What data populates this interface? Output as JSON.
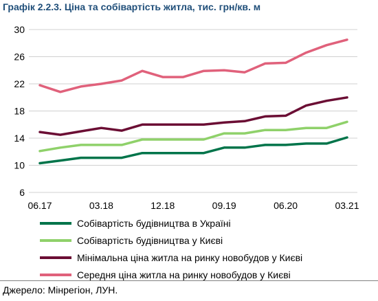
{
  "header": {
    "label": "Графік 2.2.3.",
    "title": "Ціна та собівартість житла, тис. грн/кв. м"
  },
  "source": "Джерело: Мінрегіон, ЛУН.",
  "chart_data": {
    "type": "line",
    "title": "Ціна та собівартість житла, тис. грн/кв. м",
    "ylim": [
      6,
      30
    ],
    "yticks": [
      6,
      10,
      14,
      18,
      22,
      26,
      30
    ],
    "xlim": [
      0,
      15
    ],
    "xtick_labels": [
      {
        "x": 0,
        "label": "06.17"
      },
      {
        "x": 3,
        "label": "03.18"
      },
      {
        "x": 6,
        "label": "12.18"
      },
      {
        "x": 9,
        "label": "09.19"
      },
      {
        "x": 12,
        "label": "06.20"
      },
      {
        "x": 15,
        "label": "03.21"
      }
    ],
    "grid": true,
    "legend_position": "bottom",
    "x": [
      0,
      1,
      2,
      3,
      4,
      5,
      6,
      7,
      8,
      9,
      10,
      11,
      12,
      13,
      14,
      15
    ],
    "series": [
      {
        "name": "Собівартість будівництва в Україні",
        "color": "#00744a",
        "values": [
          10.3,
          10.7,
          11.1,
          11.1,
          11.1,
          11.8,
          11.8,
          11.8,
          11.8,
          12.6,
          12.6,
          13.0,
          13.0,
          13.2,
          13.2,
          14.1
        ]
      },
      {
        "name": "Собівартість будівництва у Києві",
        "color": "#8fd16a",
        "values": [
          12.1,
          12.6,
          13.0,
          13.0,
          13.0,
          13.8,
          13.8,
          13.8,
          13.8,
          14.7,
          14.7,
          15.2,
          15.2,
          15.5,
          15.5,
          16.4
        ]
      },
      {
        "name": "Мінімальна ціна житла на ринку новобудов у Києві",
        "color": "#6b0e34",
        "values": [
          14.9,
          14.5,
          15.0,
          15.5,
          15.1,
          16.0,
          16.0,
          16.0,
          16.0,
          16.3,
          16.5,
          17.2,
          17.3,
          18.8,
          19.5,
          20.0
        ]
      },
      {
        "name": "Середня ціна житла на ринку новобудов у Києві",
        "color": "#e0617b",
        "values": [
          21.8,
          20.8,
          21.6,
          22.0,
          22.5,
          23.9,
          23.0,
          23.0,
          23.9,
          24.0,
          23.7,
          25.0,
          25.1,
          26.6,
          27.7,
          28.5
        ]
      }
    ]
  }
}
